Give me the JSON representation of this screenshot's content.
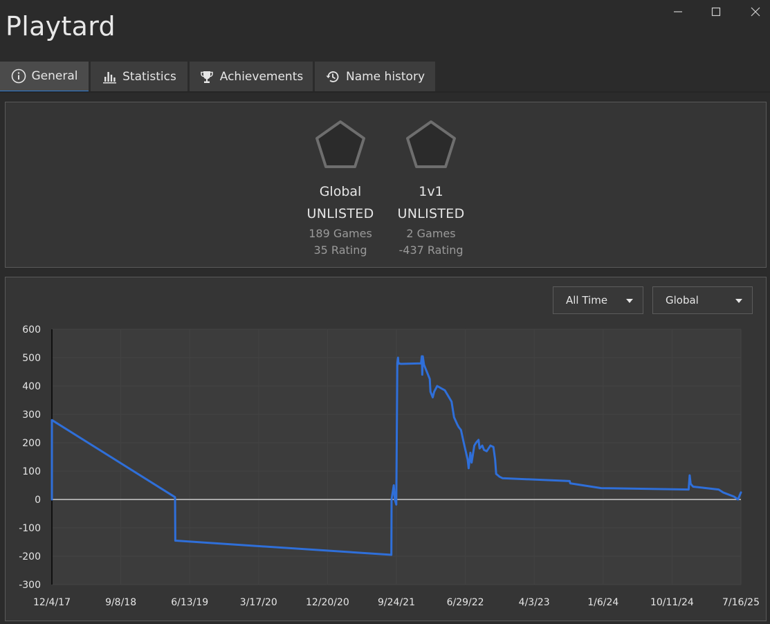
{
  "window": {
    "title": "Playtard"
  },
  "tabs": [
    {
      "label": "General",
      "icon": "info-icon",
      "active": true
    },
    {
      "label": "Statistics",
      "icon": "bar-chart-icon",
      "active": false
    },
    {
      "label": "Achievements",
      "icon": "trophy-icon",
      "active": false
    },
    {
      "label": "Name history",
      "icon": "history-icon",
      "active": false
    }
  ],
  "ranks": [
    {
      "name": "Global",
      "status": "UNLISTED",
      "games": "189 Games",
      "rating": "35 Rating"
    },
    {
      "name": "1v1",
      "status": "UNLISTED",
      "games": "2 Games",
      "rating": "-437 Rating"
    }
  ],
  "filters": {
    "time_range": "All Time",
    "mode": "Global"
  },
  "colors": {
    "accent": "#2f7fd6",
    "line": "#2f6fd9",
    "background": "#2b2b2b",
    "panel": "#353535",
    "plot": "#3c3c3c"
  },
  "chart_data": {
    "type": "line",
    "title": "",
    "xlabel": "",
    "ylabel": "",
    "ylim": [
      -300,
      600
    ],
    "yticks": [
      "600",
      "500",
      "400",
      "300",
      "200",
      "100",
      "0",
      "-100",
      "-200",
      "-300"
    ],
    "xticks": [
      "12/4/17",
      "9/8/18",
      "6/13/19",
      "3/17/20",
      "12/20/20",
      "9/24/21",
      "6/29/22",
      "4/3/23",
      "1/6/24",
      "10/11/24",
      "7/16/25"
    ],
    "xlim": [
      "2017-12-04",
      "2025-07-16"
    ],
    "grid": true,
    "series": [
      {
        "x": [
          "2017-12-04",
          "2017-12-04",
          "2017-12-04",
          "2019-04-15",
          "2019-04-16",
          "2021-09-04",
          "2021-09-05",
          "2021-09-14",
          "2021-09-18",
          "2021-09-24",
          "2021-09-28",
          "2021-10-01",
          "2021-10-03",
          "2021-10-05",
          "2021-10-12",
          "2022-01-02",
          "2022-01-05",
          "2022-01-07",
          "2022-01-09",
          "2022-01-14",
          "2022-02-06",
          "2022-02-09",
          "2022-02-18",
          "2022-02-24",
          "2022-03-08",
          "2022-03-18",
          "2022-04-08",
          "2022-05-05",
          "2022-05-15",
          "2022-05-28",
          "2022-06-03",
          "2022-06-12",
          "2022-06-22",
          "2022-07-09",
          "2022-07-13",
          "2022-07-20",
          "2022-07-25",
          "2022-08-05",
          "2022-08-12",
          "2022-08-22",
          "2022-08-26",
          "2022-09-06",
          "2022-09-13",
          "2022-09-24",
          "2022-10-09",
          "2022-10-21",
          "2022-10-28",
          "2022-11-01",
          "2022-11-08",
          "2022-11-15",
          "2022-11-27",
          "2023-08-25",
          "2023-08-27",
          "2023-09-11",
          "2023-12-30",
          "2024-12-17",
          "2024-12-21",
          "2024-12-25",
          "2025-01-04",
          "2025-04-17",
          "2025-05-05",
          "2025-06-18",
          "2025-07-04",
          "2025-07-16"
        ],
        "y": [
          0,
          280,
          280,
          8,
          -145,
          -195,
          0,
          50,
          0,
          -18,
          480,
          500,
          478,
          480,
          478,
          480,
          505,
          440,
          505,
          475,
          425,
          380,
          360,
          380,
          400,
          395,
          385,
          345,
          290,
          265,
          255,
          245,
          205,
          140,
          110,
          165,
          130,
          190,
          200,
          210,
          180,
          190,
          175,
          170,
          190,
          185,
          140,
          90,
          85,
          80,
          75,
          65,
          57,
          55,
          40,
          35,
          85,
          55,
          45,
          35,
          25,
          10,
          0,
          25
        ]
      }
    ]
  }
}
